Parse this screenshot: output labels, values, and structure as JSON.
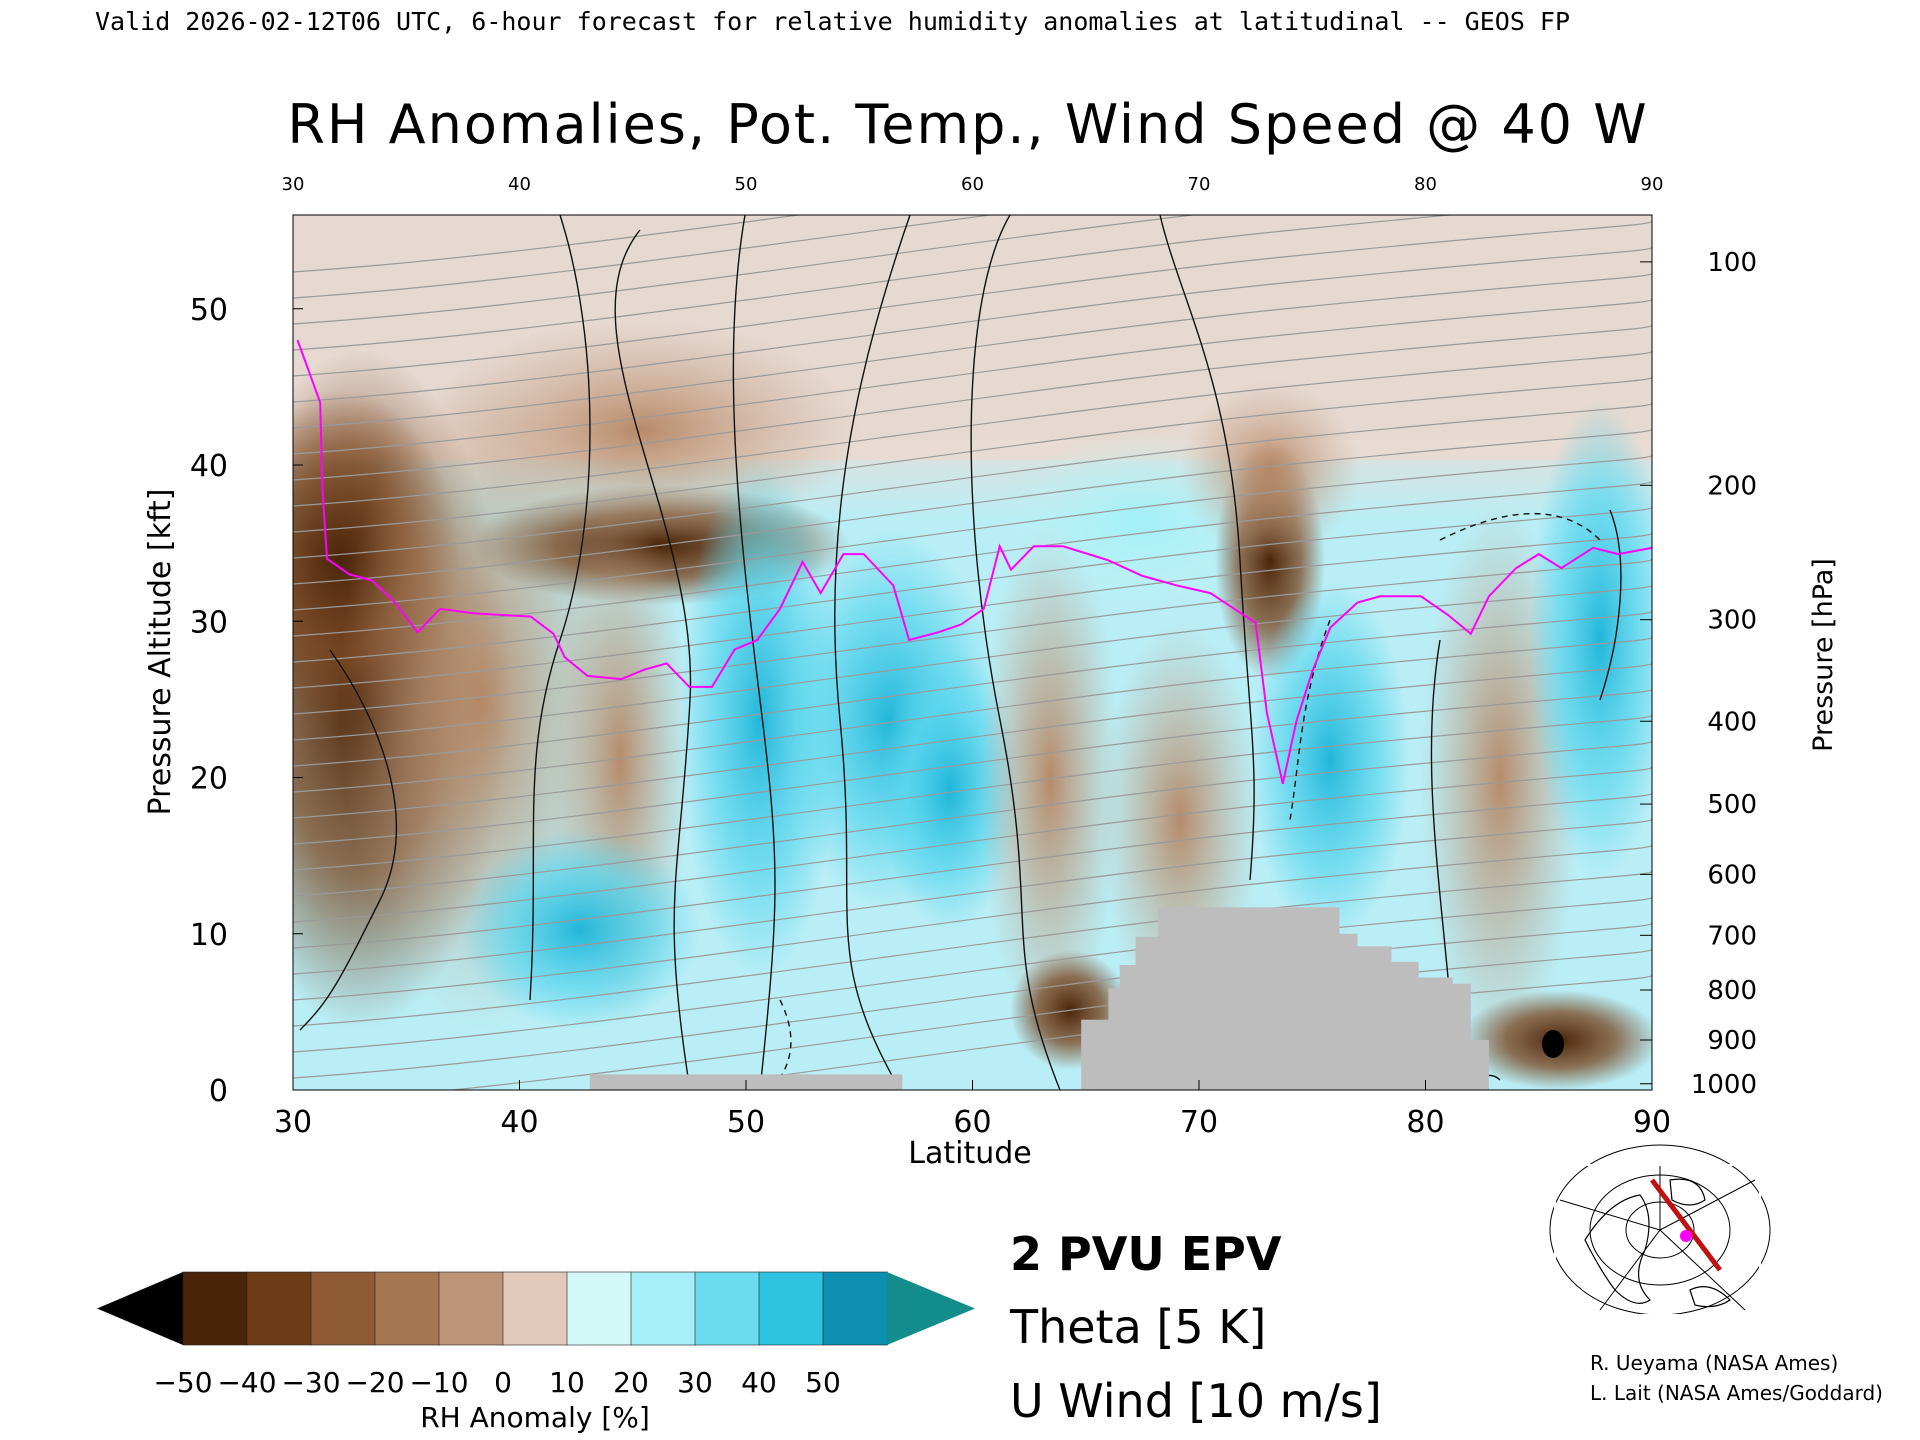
{
  "header": {
    "valid_line": "Valid 2026-02-12T06 UTC, 6-hour forecast for relative humidity anomalies at latitudinal -- GEOS FP"
  },
  "chart_data": {
    "type": "heatmap",
    "title": "RH Anomalies, Pot. Temp., Wind Speed @ 40 W",
    "xlabel": "Latitude",
    "ylabel_left": "Pressure Altitude [kft]",
    "ylabel_right": "Pressure [hPa]",
    "xlim": [
      30,
      90
    ],
    "ylim_kft": [
      0,
      56
    ],
    "x_ticks": [
      "30",
      "40",
      "50",
      "60",
      "70",
      "80",
      "90"
    ],
    "top_x_ticks": [
      "30",
      "40",
      "50",
      "60",
      "70",
      "80",
      "90"
    ],
    "y_ticks_kft": [
      "0",
      "10",
      "20",
      "30",
      "40",
      "50"
    ],
    "y_ticks_kft_values": [
      0,
      10,
      20,
      30,
      40,
      50
    ],
    "pressure_ticks": [
      {
        "label": "100",
        "kft": 53.0
      },
      {
        "label": "200",
        "kft": 38.7
      },
      {
        "label": "300",
        "kft": 30.1
      },
      {
        "label": "400",
        "kft": 23.6
      },
      {
        "label": "500",
        "kft": 18.3
      },
      {
        "label": "600",
        "kft": 13.8
      },
      {
        "label": "700",
        "kft": 9.9
      },
      {
        "label": "800",
        "kft": 6.4
      },
      {
        "label": "900",
        "kft": 3.2
      },
      {
        "label": "1000",
        "kft": 0.4
      }
    ],
    "pv2_line": [
      [
        30.2,
        48
      ],
      [
        31.2,
        44
      ],
      [
        31.3,
        38.5
      ],
      [
        31.5,
        34
      ],
      [
        32.5,
        33
      ],
      [
        33.5,
        32.6
      ],
      [
        34.5,
        31.2
      ],
      [
        35.5,
        29.3
      ],
      [
        36.5,
        30.8
      ],
      [
        38,
        30.5
      ],
      [
        40.5,
        30.3
      ],
      [
        41.5,
        29.2
      ],
      [
        42,
        27.7
      ],
      [
        43,
        26.5
      ],
      [
        44.5,
        26.3
      ],
      [
        45.5,
        26.9
      ],
      [
        46.5,
        27.3
      ],
      [
        47.5,
        25.8
      ],
      [
        48.5,
        25.8
      ],
      [
        49.5,
        28.2
      ],
      [
        50.5,
        28.8
      ],
      [
        51.5,
        30.8
      ],
      [
        52.5,
        33.8
      ],
      [
        53.3,
        31.8
      ],
      [
        54.3,
        34.3
      ],
      [
        55.2,
        34.3
      ],
      [
        56.5,
        32.3
      ],
      [
        57.2,
        28.8
      ],
      [
        58.5,
        29.3
      ],
      [
        59.5,
        29.8
      ],
      [
        60.5,
        30.8
      ],
      [
        61.2,
        34.8
      ],
      [
        61.7,
        33.3
      ],
      [
        62.7,
        34.8
      ],
      [
        64,
        34.8
      ],
      [
        66,
        33.9
      ],
      [
        67.5,
        32.9
      ],
      [
        69,
        32.3
      ],
      [
        70.5,
        31.8
      ],
      [
        72.5,
        29.9
      ],
      [
        73,
        24.1
      ],
      [
        73.7,
        19.6
      ],
      [
        74.3,
        23.6
      ],
      [
        75,
        26.8
      ],
      [
        75.8,
        29.6
      ],
      [
        77,
        31.2
      ],
      [
        78,
        31.6
      ],
      [
        79.8,
        31.6
      ],
      [
        81,
        30.4
      ],
      [
        82,
        29.2
      ],
      [
        82.8,
        31.6
      ],
      [
        84,
        33.4
      ],
      [
        85,
        34.3
      ],
      [
        86,
        33.4
      ],
      [
        87.4,
        34.7
      ],
      [
        88.5,
        34.3
      ],
      [
        90,
        34.7
      ]
    ],
    "terrain_mask": [
      [
        64.8,
        4.5
      ],
      [
        66,
        4.5
      ],
      [
        66,
        6.5
      ],
      [
        66.5,
        6.5
      ],
      [
        66.5,
        8.0
      ],
      [
        67.2,
        8.0
      ],
      [
        67.2,
        9.8
      ],
      [
        68.2,
        9.8
      ],
      [
        68.2,
        11.7
      ],
      [
        76.2,
        11.7
      ],
      [
        76.2,
        10.0
      ],
      [
        77,
        10.0
      ],
      [
        77,
        9.2
      ],
      [
        78.5,
        9.2
      ],
      [
        78.5,
        8.2
      ],
      [
        79.7,
        8.2
      ],
      [
        79.7,
        7.2
      ],
      [
        81.2,
        7.2
      ],
      [
        81.2,
        6.8
      ],
      [
        82.0,
        6.8
      ],
      [
        82.0,
        3.2
      ],
      [
        82.8,
        3.2
      ],
      [
        82.8,
        1.0
      ]
    ],
    "colorbar": {
      "label": "RH Anomaly [%]",
      "tick_labels": [
        "−50",
        "−40",
        "−30",
        "−20",
        "−10",
        "0",
        "10",
        "20",
        "30",
        "40",
        "50"
      ],
      "colors": [
        "#4a2409",
        "#6e3d18",
        "#8d5a33",
        "#a57650",
        "#bd9478",
        "#e3c9b9",
        "#d4f7f7",
        "#a6eff8",
        "#6bdcef",
        "#2fc2e1",
        "#0d8fb2"
      ],
      "under_color": "#000000",
      "over_color": "#138c8c"
    },
    "legend": [
      {
        "label": "2 PVU EPV",
        "color": "#ff00ff"
      },
      {
        "label": "Theta [5 K]",
        "color": "#aaaaaa"
      },
      {
        "label": "U Wind [10 m/s]",
        "color": "#000000"
      }
    ]
  },
  "credits": [
    "R. Ueyama (NASA Ames)",
    "L. Lait (NASA Ames/Goddard)"
  ]
}
